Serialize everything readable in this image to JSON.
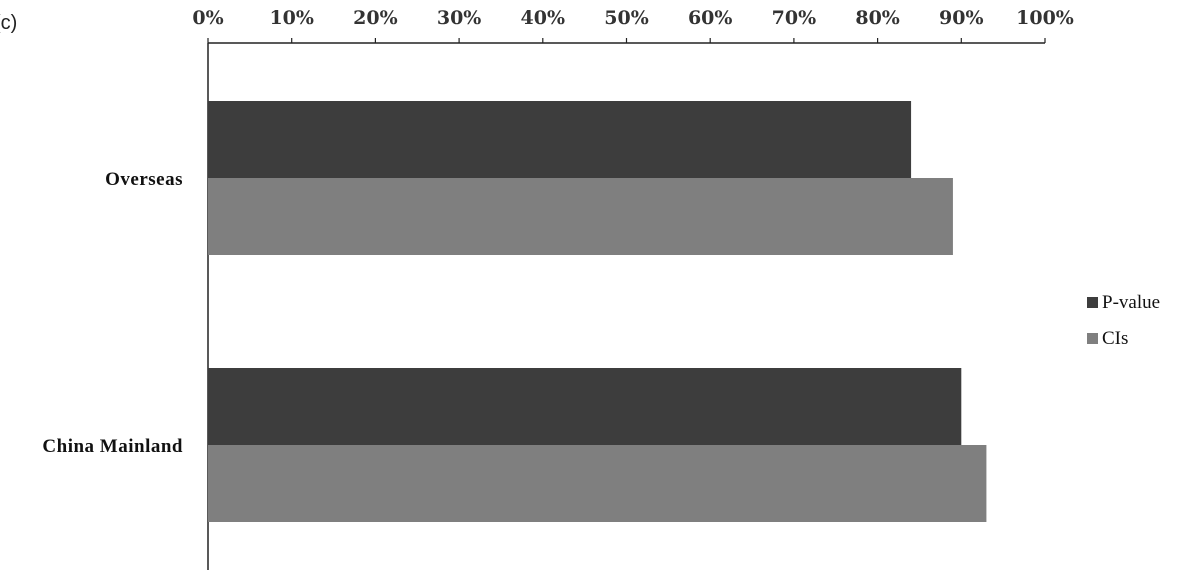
{
  "panel_label": "(c)",
  "colors": {
    "p_value": "#3d3d3d",
    "cis": "#7f7f7f",
    "axis": "#222222"
  },
  "chart_data": {
    "type": "bar",
    "orientation": "horizontal",
    "categories": [
      "Overseas",
      "China Mainland"
    ],
    "series": [
      {
        "name": "P-value",
        "values": [
          84,
          90
        ]
      },
      {
        "name": "CIs",
        "values": [
          89,
          93
        ]
      }
    ],
    "xlim": [
      0,
      100
    ],
    "x_ticks": [
      "0%",
      "10%",
      "20%",
      "30%",
      "40%",
      "50%",
      "60%",
      "70%",
      "80%",
      "90%",
      "100%"
    ],
    "x_axis_position": "top",
    "grid": false,
    "legend_position": "right"
  }
}
